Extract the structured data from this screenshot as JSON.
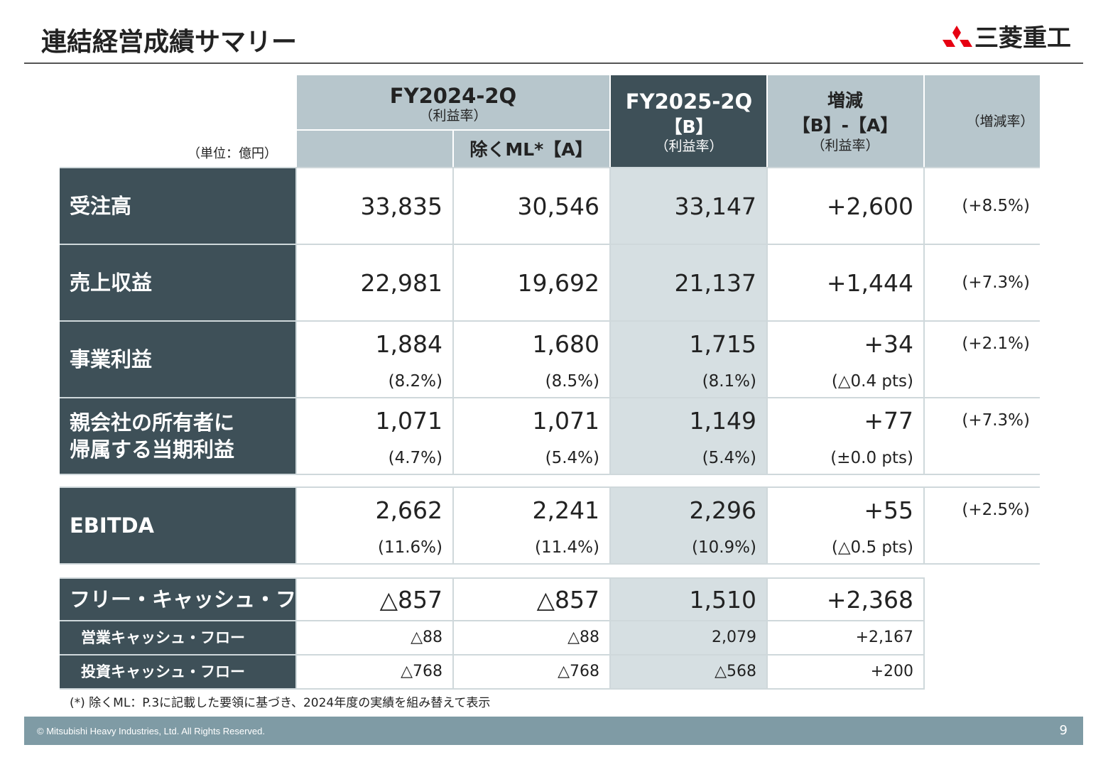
{
  "header": {
    "title": "連結経営成績サマリー",
    "logo": "三菱重工"
  },
  "table": {
    "unit": "（単位：億円）",
    "head": {
      "fy2024": "FY2024-2Q",
      "fy2024_sub": "（利益率）",
      "excl_ml": "除くML*【A】",
      "fy2025": "FY2025-2Q",
      "fy2025_b": "【B】",
      "fy2025_sub": "（利益率）",
      "change": "増減",
      "change_ba": "【B】-【A】",
      "change_sub": "（利益率）",
      "rate": "（増減率）"
    },
    "rows": [
      {
        "label_lines": [
          "受注高"
        ],
        "values": [
          "33,835",
          "30,546",
          "33,147",
          "+2,600"
        ],
        "rate": "(+8.5%)"
      },
      {
        "label_lines": [
          "売上収益"
        ],
        "values": [
          "22,981",
          "19,692",
          "21,137",
          "+1,444"
        ],
        "rate": "(+7.3%)"
      },
      {
        "label_lines": [
          "事業利益"
        ],
        "values": [
          "1,884",
          "1,680",
          "1,715",
          "+34"
        ],
        "margins": [
          "(8.2%)",
          "(8.5%)",
          "(8.1%)",
          "(△0.4 pts)"
        ],
        "rate": "(+2.1%)"
      },
      {
        "label_lines": [
          "親会社の所有者に",
          "帰属する当期利益"
        ],
        "values": [
          "1,071",
          "1,071",
          "1,149",
          "+77"
        ],
        "margins": [
          "(4.7%)",
          "(5.4%)",
          "(5.4%)",
          "(±0.0 pts)"
        ],
        "rate": "(+7.3%)"
      }
    ],
    "ebitda": {
      "label_lines": [
        "EBITDA"
      ],
      "values": [
        "2,662",
        "2,241",
        "2,296",
        "+55"
      ],
      "margins": [
        "(11.6%)",
        "(11.4%)",
        "(10.9%)",
        "(△0.5 pts)"
      ],
      "rate": "(+2.5%)"
    },
    "cash_flow": [
      {
        "label": "フリー・キャッシュ・フロー",
        "values": [
          "△857",
          "△857",
          "1,510",
          "+2,368"
        ]
      },
      {
        "label": "営業キャッシュ・フロー",
        "values": [
          "△88",
          "△88",
          "2,079",
          "+2,167"
        ]
      },
      {
        "label": "投資キャッシュ・フロー",
        "values": [
          "△768",
          "△768",
          "△568",
          "+200"
        ]
      }
    ]
  },
  "footnote": "(*) 除くML：P.3に記載した要領に基づき、2024年度の実績を組み替えて表示",
  "footer": {
    "copyright": "© Mitsubishi Heavy Industries, Ltd.  All Rights Reserved.",
    "page": "9"
  }
}
